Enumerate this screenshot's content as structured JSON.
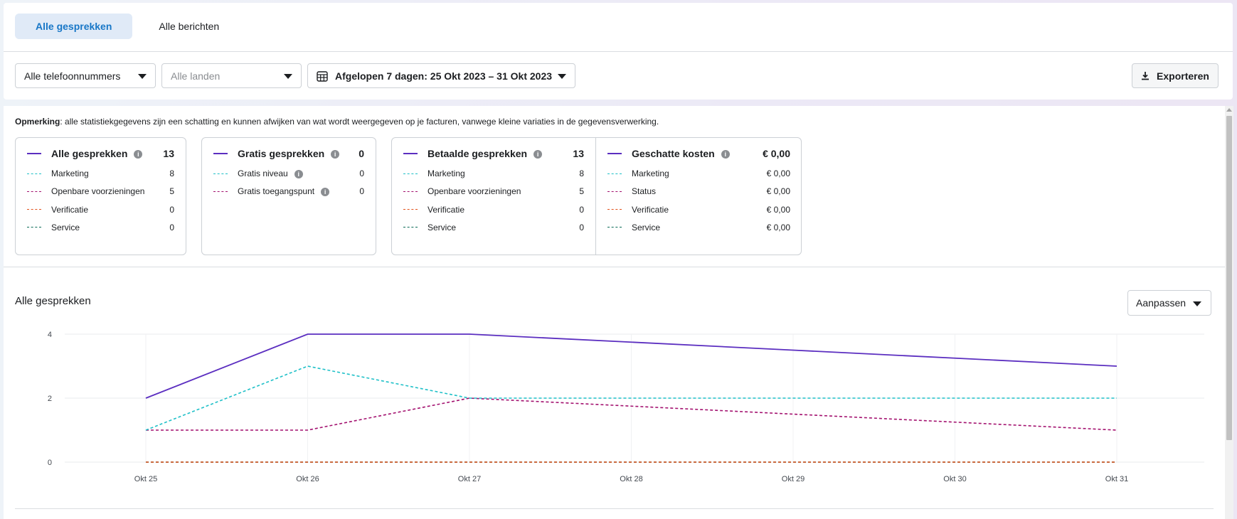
{
  "tabs": [
    {
      "label": "Alle gesprekken",
      "active": true
    },
    {
      "label": "Alle berichten",
      "active": false
    }
  ],
  "filters": {
    "phone": "Alle telefoonnummers",
    "country": "Alle landen",
    "date": "Afgelopen 7 dagen: 25 Okt 2023 – 31 Okt 2023"
  },
  "export_label": "Exporteren",
  "note": {
    "bold": "Opmerking",
    "text": ": alle statistiekgegevens zijn een schatting en kunnen afwijken van wat wordt weergegeven op je facturen, vanwege kleine variaties in de gegevensverwerking."
  },
  "cards": {
    "all": {
      "title": "Alle gesprekken",
      "total": "13",
      "rows": [
        {
          "label": "Marketing",
          "value": "8",
          "color": "#1fc0c8"
        },
        {
          "label": "Openbare voorzieningen",
          "value": "5",
          "color": "#a3116f"
        },
        {
          "label": "Verificatie",
          "value": "0",
          "color": "#e2531d"
        },
        {
          "label": "Service",
          "value": "0",
          "color": "#0b6b57"
        }
      ]
    },
    "free": {
      "title": "Gratis gesprekken",
      "total": "0",
      "rows": [
        {
          "label": "Gratis niveau",
          "value": "0",
          "color": "#1fc0c8"
        },
        {
          "label": "Gratis toegangspunt",
          "value": "0",
          "color": "#a3116f"
        }
      ]
    },
    "paid": {
      "title": "Betaalde gesprekken",
      "total": "13",
      "rows": [
        {
          "label": "Marketing",
          "value": "8",
          "color": "#1fc0c8"
        },
        {
          "label": "Openbare voorzieningen",
          "value": "5",
          "color": "#a3116f"
        },
        {
          "label": "Verificatie",
          "value": "0",
          "color": "#e2531d"
        },
        {
          "label": "Service",
          "value": "0",
          "color": "#0b6b57"
        }
      ]
    },
    "costs": {
      "title": "Geschatte kosten",
      "total": "€ 0,00",
      "rows": [
        {
          "label": "Marketing",
          "value": "€ 0,00",
          "color": "#1fc0c8"
        },
        {
          "label": "Status",
          "value": "€ 0,00",
          "color": "#a3116f"
        },
        {
          "label": "Verificatie",
          "value": "€ 0,00",
          "color": "#e2531d"
        },
        {
          "label": "Service",
          "value": "€ 0,00",
          "color": "#0b6b57"
        }
      ]
    }
  },
  "total_line_color": "#5b2ec0",
  "section_title": "Alle gesprekken",
  "adjust_label": "Aanpassen",
  "chart_data": {
    "type": "line",
    "x": [
      "Okt 25",
      "Okt 26",
      "Okt 27",
      "Okt 28",
      "Okt 29",
      "Okt 30",
      "Okt 31"
    ],
    "yticks": [
      0,
      2,
      4
    ],
    "ylim": [
      0,
      4
    ],
    "grid": true,
    "series": [
      {
        "values": [
          2,
          4,
          4,
          3.75,
          3.5,
          3.25,
          3
        ],
        "color": "#5b2ec0",
        "dashed": false
      },
      {
        "values": [
          1,
          3,
          2,
          2,
          2,
          2,
          2
        ],
        "color": "#1fc0c8",
        "dashed": true
      },
      {
        "values": [
          1,
          1,
          2,
          1.75,
          1.5,
          1.25,
          1
        ],
        "color": "#a3116f",
        "dashed": true
      },
      {
        "values": [
          0,
          0,
          0,
          0,
          0,
          0,
          0
        ],
        "color": "#e2531d",
        "dashed": true
      },
      {
        "values": [
          0,
          0,
          0,
          0,
          0,
          0,
          0
        ],
        "color": "#0b6b57",
        "dashed": true
      }
    ]
  }
}
